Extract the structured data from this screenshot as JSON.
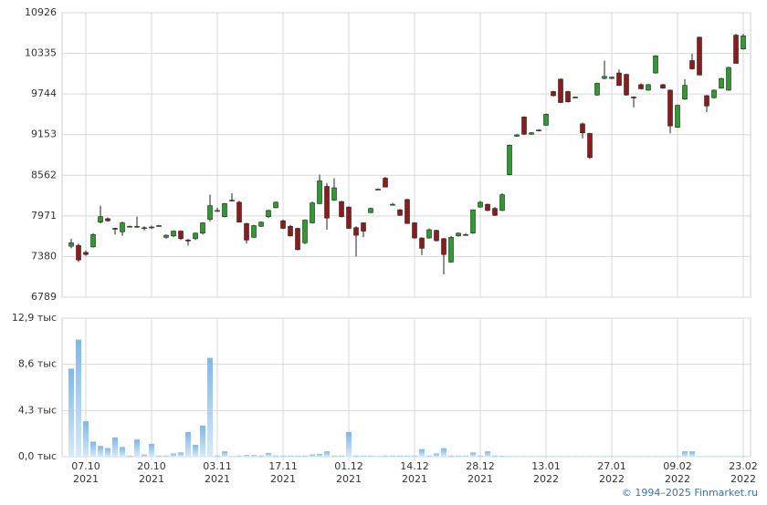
{
  "chart_data": {
    "type": "candlestick",
    "categories": [
      null,
      null,
      "07.10\n2021",
      null,
      null,
      null,
      null,
      null,
      null,
      null,
      null,
      "20.10\n2021",
      null,
      null,
      null,
      null,
      null,
      null,
      null,
      null,
      "03.11\n2021",
      null,
      null,
      null,
      null,
      null,
      null,
      null,
      null,
      "17.11\n2021",
      null,
      null,
      null,
      null,
      null,
      null,
      null,
      null,
      "01.12\n2021",
      null,
      null,
      null,
      null,
      null,
      null,
      null,
      null,
      "14.12\n2021",
      null,
      null,
      null,
      null,
      null,
      null,
      null,
      null,
      "28.12\n2021",
      null,
      null,
      null,
      null,
      null,
      null,
      null,
      null,
      "13.01\n2022",
      null,
      null,
      null,
      null,
      null,
      null,
      null,
      null,
      "27.01\n2022",
      null,
      null,
      null,
      null,
      null,
      null,
      null,
      null,
      "09.02\n2022",
      null,
      null,
      null,
      null,
      null,
      null,
      null,
      null,
      "23.02\n2022"
    ],
    "open": [
      7530,
      7540,
      7440,
      7520,
      7880,
      7930,
      7790,
      7740,
      7820,
      7810,
      7790,
      7800,
      7830,
      7660,
      7680,
      7750,
      7620,
      7640,
      7720,
      7920,
      8050,
      7960,
      8200,
      8170,
      7860,
      7660,
      7820,
      7960,
      8090,
      7900,
      7820,
      7790,
      7580,
      7870,
      8150,
      8400,
      8200,
      8180,
      8100,
      7800,
      7870,
      8020,
      8360,
      8520,
      8140,
      8060,
      8210,
      7870,
      7650,
      7650,
      7760,
      7640,
      7300,
      7680,
      7700,
      7720,
      8100,
      8140,
      8080,
      8050,
      8570,
      9130,
      9410,
      9160,
      9210,
      9290,
      9780,
      9960,
      9780,
      9700,
      9310,
      9170,
      9730,
      9970,
      9970,
      10050,
      10030,
      9700,
      9880,
      9800,
      10050,
      9880,
      9800,
      9260,
      9670,
      10230,
      10570,
      9720,
      9690,
      9830,
      9800,
      10600,
      10400
    ],
    "high": [
      7640,
      7570,
      7470,
      7720,
      8120,
      7950,
      7800,
      7890,
      7830,
      7960,
      7820,
      7830,
      7840,
      7700,
      7760,
      7760,
      7640,
      7730,
      7880,
      8280,
      8090,
      8160,
      8300,
      8190,
      7870,
      7840,
      7890,
      8060,
      8180,
      7920,
      7840,
      7800,
      7920,
      8180,
      8570,
      8450,
      8520,
      8190,
      8110,
      7820,
      7880,
      8090,
      8370,
      8540,
      8160,
      8070,
      8220,
      7880,
      7660,
      7790,
      7770,
      7650,
      7680,
      7730,
      7720,
      8060,
      8190,
      8150,
      8100,
      8300,
      9010,
      9160,
      9420,
      9190,
      9230,
      9460,
      9790,
      9970,
      9790,
      9710,
      9330,
      9180,
      9910,
      10230,
      10000,
      10100,
      10040,
      9710,
      9900,
      9890,
      10310,
      9890,
      9810,
      9590,
      9960,
      10330,
      10580,
      9730,
      9810,
      9980,
      10140,
      10620,
      10620
    ],
    "low": [
      7500,
      7300,
      7390,
      7510,
      7860,
      7890,
      7700,
      7680,
      7810,
      7800,
      7760,
      7780,
      7820,
      7640,
      7660,
      7620,
      7540,
      7620,
      7700,
      7890,
      8030,
      7950,
      8180,
      7880,
      7570,
      7650,
      7810,
      7940,
      8080,
      7780,
      7670,
      7470,
      7560,
      7860,
      8140,
      7770,
      8190,
      7950,
      7780,
      7380,
      7660,
      8010,
      8350,
      8390,
      8120,
      7970,
      7860,
      7640,
      7400,
      7640,
      7600,
      7120,
      7290,
      7670,
      7690,
      7710,
      8090,
      8040,
      7970,
      8040,
      8560,
      9120,
      9150,
      9150,
      9200,
      9280,
      9710,
      9610,
      9620,
      9690,
      9100,
      8800,
      9720,
      9960,
      9960,
      9860,
      9720,
      9550,
      9810,
      9790,
      10040,
      9820,
      9170,
      9250,
      9660,
      10100,
      10020,
      9480,
      9680,
      9820,
      9790,
      10190,
      10390
    ],
    "close": [
      7580,
      7330,
      7410,
      7700,
      7960,
      7900,
      7780,
      7870,
      7820,
      7820,
      7800,
      7810,
      7830,
      7690,
      7750,
      7640,
      7610,
      7720,
      7870,
      8120,
      8050,
      8150,
      8200,
      7880,
      7620,
      7830,
      7880,
      8050,
      8170,
      7790,
      7680,
      7480,
      7910,
      8160,
      8480,
      7940,
      8380,
      7960,
      7790,
      7690,
      7750,
      8080,
      8360,
      8390,
      8140,
      7980,
      7860,
      7650,
      7500,
      7770,
      7610,
      7410,
      7660,
      7720,
      7700,
      8060,
      8170,
      8050,
      7980,
      8280,
      9000,
      9150,
      9160,
      9180,
      9220,
      9450,
      9720,
      9620,
      9630,
      9700,
      9180,
      8820,
      9900,
      10000,
      9990,
      9870,
      9730,
      9690,
      9820,
      9880,
      10300,
      9830,
      9280,
      9580,
      9870,
      10110,
      10020,
      9570,
      9800,
      9970,
      10130,
      10190,
      10590
    ],
    "up_color": "#2f9a2f",
    "down_color": "#8b1c1c",
    "ylim": [
      6789,
      10926
    ],
    "yticks": [
      6789,
      7380,
      7971,
      8562,
      9153,
      9744,
      10335,
      10926
    ],
    "grid": true,
    "volume": {
      "type": "bar",
      "color": "#8fc3ee",
      "values": [
        8200,
        10900,
        3300,
        1400,
        1000,
        800,
        1800,
        900,
        100,
        1600,
        200,
        1200,
        100,
        100,
        300,
        400,
        2300,
        1100,
        2900,
        9200,
        100,
        500,
        50,
        100,
        150,
        150,
        100,
        350,
        100,
        100,
        100,
        100,
        100,
        200,
        250,
        500,
        100,
        100,
        2300,
        100,
        100,
        100,
        50,
        100,
        100,
        100,
        100,
        100,
        700,
        100,
        300,
        800,
        100,
        100,
        100,
        400,
        100,
        500,
        100,
        80,
        50,
        50,
        50,
        50,
        50,
        50,
        50,
        50,
        50,
        50,
        50,
        50,
        50,
        50,
        50,
        50,
        50,
        50,
        50,
        50,
        50,
        50,
        50,
        50,
        500,
        500,
        50,
        50,
        50,
        50,
        50,
        50,
        50
      ],
      "ylim": [
        0,
        12900
      ],
      "yticks": [
        {
          "value": 0,
          "label": "0,0 тыс"
        },
        {
          "value": 4300,
          "label": "4,3 тыс"
        },
        {
          "value": 8600,
          "label": "8,6 тыс"
        },
        {
          "value": 12900,
          "label": "12,9 тыс"
        }
      ]
    }
  },
  "footer": "© 1994–2025 Finmarket.ru"
}
